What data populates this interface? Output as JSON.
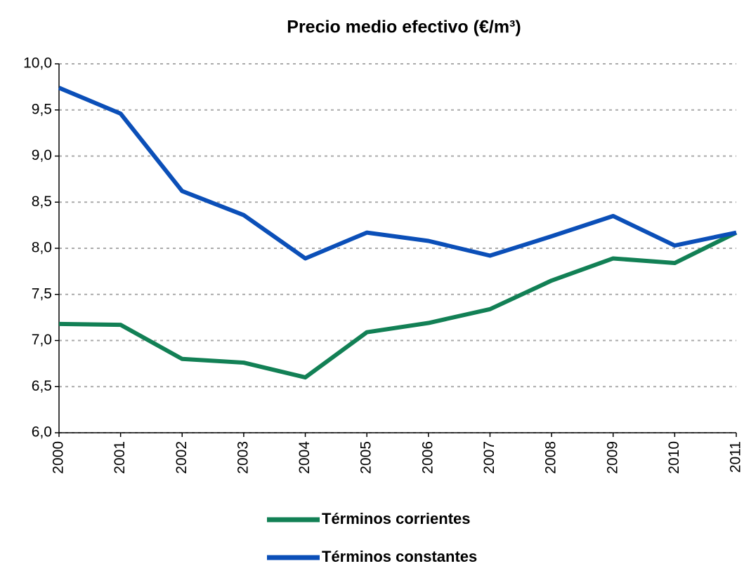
{
  "chart_data": {
    "type": "line",
    "title": "Precio medio efectivo (€/m³)",
    "x": [
      2000,
      2001,
      2002,
      2003,
      2004,
      2005,
      2006,
      2007,
      2008,
      2009,
      2010,
      2011
    ],
    "xlim": [
      2000,
      2011
    ],
    "xticks": [
      2000,
      2001,
      2002,
      2003,
      2004,
      2005,
      2006,
      2007,
      2008,
      2009,
      2010,
      2011
    ],
    "ylim": [
      6,
      10
    ],
    "yticks": [
      {
        "value": 6,
        "label": "6,0"
      },
      {
        "value": 6.5,
        "label": "6,5"
      },
      {
        "value": 7,
        "label": "7,0"
      },
      {
        "value": 7.5,
        "label": "7,5"
      },
      {
        "value": 8,
        "label": "8,0"
      },
      {
        "value": 8.5,
        "label": "8,5"
      },
      {
        "value": 9,
        "label": "9,0"
      },
      {
        "value": 9.5,
        "label": "9,5"
      },
      {
        "value": 10,
        "label": "10,0"
      }
    ],
    "grid": true,
    "legend": "bottom",
    "series": [
      {
        "name": "Términos corrientes",
        "color": "#128055",
        "values": [
          7.18,
          7.17,
          6.8,
          6.76,
          6.6,
          7.09,
          7.19,
          7.34,
          7.65,
          7.89,
          7.84,
          8.17
        ]
      },
      {
        "name": "Términos constantes",
        "color": "#0b4fb8",
        "values": [
          9.74,
          9.46,
          8.62,
          8.36,
          7.89,
          8.17,
          8.08,
          7.92,
          8.13,
          8.35,
          8.03,
          8.17
        ]
      }
    ]
  }
}
